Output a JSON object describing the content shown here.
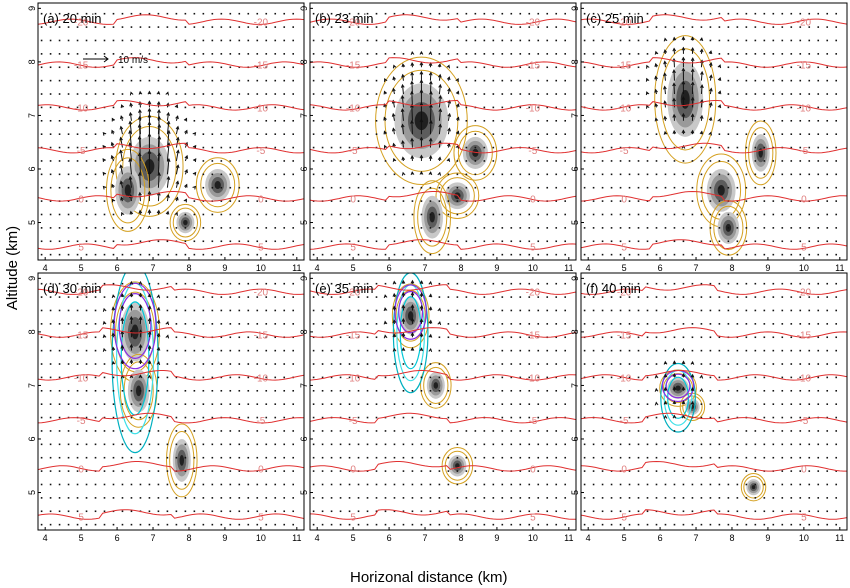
{
  "figure": {
    "ylabel": "Altitude (km)",
    "xlabel": "Horizonal distance (km)",
    "wind_key_label": "10 m/s"
  },
  "chart_data": [
    {
      "type": "contour",
      "panel": "(a) 20 min",
      "x_ticks": [
        4,
        5,
        6,
        7,
        8,
        9,
        10,
        11
      ],
      "y_ticks": [
        5,
        6,
        7,
        8,
        9
      ],
      "xlim": [
        3.8,
        11.2
      ],
      "ylim": [
        4.3,
        9.1
      ],
      "temperature_isotherms": [
        {
          "label": "-20",
          "y": 8.75
        },
        {
          "label": "-15",
          "y": 7.95
        },
        {
          "label": "-10",
          "y": 7.15
        },
        {
          "label": "-5",
          "y": 6.35
        },
        {
          "label": "0",
          "y": 5.45
        },
        {
          "label": "5",
          "y": 4.55
        }
      ],
      "echo_cores": [
        {
          "x": 6.9,
          "y": 6.05,
          "rx": 0.55,
          "ry": 0.55
        },
        {
          "x": 6.3,
          "y": 5.6,
          "rx": 0.35,
          "ry": 0.45
        },
        {
          "x": 8.8,
          "y": 5.7,
          "rx": 0.35,
          "ry": 0.3
        },
        {
          "x": 7.9,
          "y": 5.0,
          "rx": 0.25,
          "ry": 0.2
        }
      ],
      "updraft": {
        "x": 6.9,
        "y": 6.2,
        "strength": 1.5
      }
    },
    {
      "type": "contour",
      "panel": "(b) 23 min",
      "x_ticks": [
        4,
        5,
        6,
        7,
        8,
        9,
        10,
        11
      ],
      "y_ticks": [
        5,
        6,
        7,
        8,
        9
      ],
      "xlim": [
        3.8,
        11.2
      ],
      "ylim": [
        4.3,
        9.1
      ],
      "temperature_isotherms": [
        {
          "label": "-20",
          "y": 8.75
        },
        {
          "label": "-15",
          "y": 7.95
        },
        {
          "label": "-10",
          "y": 7.15
        },
        {
          "label": "-5",
          "y": 6.35
        },
        {
          "label": "0",
          "y": 5.45
        },
        {
          "label": "5",
          "y": 4.55
        }
      ],
      "echo_cores": [
        {
          "x": 6.9,
          "y": 6.9,
          "rx": 0.75,
          "ry": 0.7
        },
        {
          "x": 8.4,
          "y": 6.3,
          "rx": 0.35,
          "ry": 0.3
        },
        {
          "x": 7.9,
          "y": 5.5,
          "rx": 0.35,
          "ry": 0.25
        },
        {
          "x": 7.2,
          "y": 5.1,
          "rx": 0.3,
          "ry": 0.4
        }
      ],
      "updraft": {
        "x": 6.9,
        "y": 7.0,
        "strength": 1.0
      }
    },
    {
      "type": "contour",
      "panel": "(c) 25 min",
      "x_ticks": [
        4,
        5,
        6,
        7,
        8,
        9,
        10,
        11
      ],
      "y_ticks": [
        5,
        6,
        7,
        8,
        9
      ],
      "xlim": [
        3.8,
        11.2
      ],
      "ylim": [
        4.3,
        9.1
      ],
      "temperature_isotherms": [
        {
          "label": "-20",
          "y": 8.75
        },
        {
          "label": "-15",
          "y": 7.95
        },
        {
          "label": "-10",
          "y": 7.15
        },
        {
          "label": "-5",
          "y": 6.35
        },
        {
          "label": "0",
          "y": 5.45
        },
        {
          "label": "5",
          "y": 4.55
        }
      ],
      "echo_cores": [
        {
          "x": 6.7,
          "y": 7.3,
          "rx": 0.5,
          "ry": 0.7
        },
        {
          "x": 8.8,
          "y": 6.3,
          "rx": 0.25,
          "ry": 0.35
        },
        {
          "x": 7.7,
          "y": 5.6,
          "rx": 0.4,
          "ry": 0.4
        },
        {
          "x": 7.9,
          "y": 4.9,
          "rx": 0.3,
          "ry": 0.3
        }
      ],
      "updraft": {
        "x": 6.7,
        "y": 7.5,
        "strength": 0.7
      }
    },
    {
      "type": "contour",
      "panel": "(d) 30 min",
      "x_ticks": [
        4,
        5,
        6,
        7,
        8,
        9,
        10,
        11
      ],
      "y_ticks": [
        5,
        6,
        7,
        8,
        9
      ],
      "xlim": [
        3.8,
        11.2
      ],
      "ylim": [
        4.3,
        9.1
      ],
      "temperature_isotherms": [
        {
          "label": "-20",
          "y": 8.75
        },
        {
          "label": "-15",
          "y": 7.95
        },
        {
          "label": "-10",
          "y": 7.15
        },
        {
          "label": "-5",
          "y": 6.35
        },
        {
          "label": "0",
          "y": 5.45
        },
        {
          "label": "5",
          "y": 4.55
        }
      ],
      "echo_cores": [
        {
          "x": 6.5,
          "y": 8.0,
          "rx": 0.4,
          "ry": 0.55
        },
        {
          "x": 6.6,
          "y": 6.9,
          "rx": 0.3,
          "ry": 0.4
        },
        {
          "x": 7.8,
          "y": 5.6,
          "rx": 0.25,
          "ry": 0.4
        }
      ],
      "updraft": {
        "x": 6.5,
        "y": 8.0,
        "strength": 0.4
      }
    },
    {
      "type": "contour",
      "panel": "(e) 35 min",
      "x_ticks": [
        4,
        5,
        6,
        7,
        8,
        9,
        10,
        11
      ],
      "y_ticks": [
        5,
        6,
        7,
        8,
        9
      ],
      "xlim": [
        3.8,
        11.2
      ],
      "ylim": [
        4.3,
        9.1
      ],
      "temperature_isotherms": [
        {
          "label": "-20",
          "y": 8.75
        },
        {
          "label": "-15",
          "y": 7.95
        },
        {
          "label": "-10",
          "y": 7.15
        },
        {
          "label": "-5",
          "y": 6.35
        },
        {
          "label": "0",
          "y": 5.45
        },
        {
          "label": "5",
          "y": 4.55
        }
      ],
      "echo_cores": [
        {
          "x": 6.6,
          "y": 8.3,
          "rx": 0.3,
          "ry": 0.35
        },
        {
          "x": 7.3,
          "y": 7.0,
          "rx": 0.25,
          "ry": 0.25
        },
        {
          "x": 7.9,
          "y": 5.5,
          "rx": 0.25,
          "ry": 0.2
        }
      ],
      "updraft": {
        "x": 6.6,
        "y": 8.3,
        "strength": 0.3
      }
    },
    {
      "type": "contour",
      "panel": "(f) 40 min",
      "x_ticks": [
        4,
        5,
        6,
        7,
        8,
        9,
        10,
        11
      ],
      "y_ticks": [
        5,
        6,
        7,
        8,
        9
      ],
      "xlim": [
        3.8,
        11.2
      ],
      "ylim": [
        4.3,
        9.1
      ],
      "temperature_isotherms": [
        {
          "label": "-20",
          "y": 8.75
        },
        {
          "label": "-15",
          "y": 7.95
        },
        {
          "label": "-10",
          "y": 7.15
        },
        {
          "label": "-5",
          "y": 6.35
        },
        {
          "label": "0",
          "y": 5.45
        },
        {
          "label": "5",
          "y": 4.55
        }
      ],
      "echo_cores": [
        {
          "x": 6.5,
          "y": 6.95,
          "rx": 0.3,
          "ry": 0.2
        },
        {
          "x": 6.9,
          "y": 6.6,
          "rx": 0.2,
          "ry": 0.15
        },
        {
          "x": 8.6,
          "y": 5.1,
          "rx": 0.2,
          "ry": 0.15
        }
      ],
      "updraft": {
        "x": 6.5,
        "y": 7.0,
        "strength": 0.2
      }
    }
  ]
}
